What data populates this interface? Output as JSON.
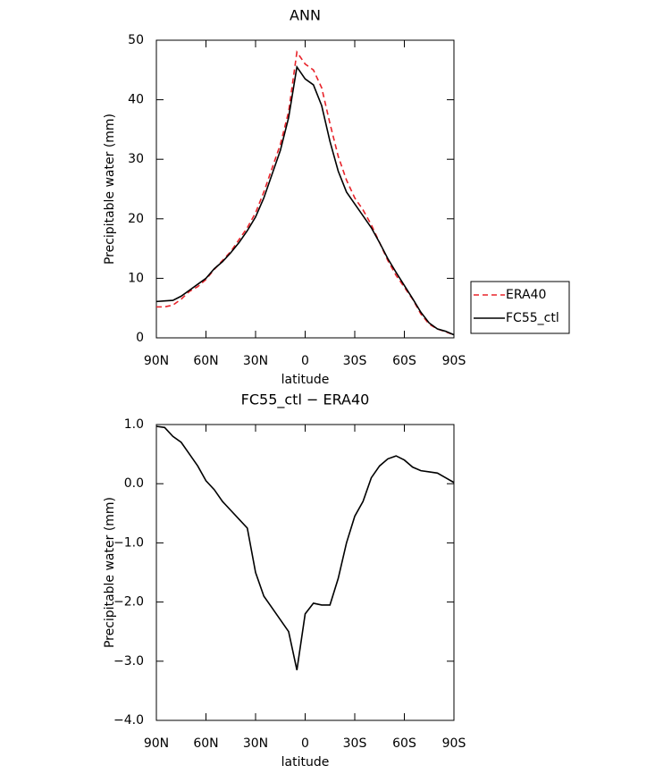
{
  "chart_data": [
    {
      "type": "line",
      "title": "ANN",
      "x_label": "latitude",
      "y_label": "Precipitable water (mm)",
      "x": [
        90,
        85,
        80,
        75,
        70,
        65,
        60,
        55,
        50,
        45,
        40,
        35,
        30,
        25,
        20,
        15,
        10,
        5,
        0,
        -5,
        -10,
        -15,
        -20,
        -25,
        -30,
        -35,
        -40,
        -45,
        -50,
        -55,
        -60,
        -65,
        -70,
        -75,
        -80,
        -85,
        -90
      ],
      "series": [
        {
          "name": "ERA40",
          "color": "#e8232a",
          "dashed": true,
          "values": [
            5.2,
            5.2,
            5.5,
            6.5,
            7.8,
            8.6,
            9.8,
            11.5,
            13.0,
            14.5,
            16.5,
            18.5,
            21.0,
            24.5,
            28.5,
            32.5,
            38.0,
            48.0,
            46.0,
            45.0,
            42.0,
            36.0,
            30.5,
            26.5,
            23.5,
            21.5,
            19.0,
            16.0,
            13.0,
            10.5,
            8.5,
            6.5,
            4.0,
            2.3,
            1.5,
            1.0,
            0.5
          ]
        },
        {
          "name": "FC55_ctl",
          "color": "#000000",
          "dashed": false,
          "values": [
            6.1,
            6.2,
            6.3,
            7.0,
            8.0,
            9.0,
            10.0,
            11.6,
            12.8,
            14.3,
            16.0,
            18.0,
            20.3,
            23.5,
            27.5,
            31.5,
            37.0,
            45.5,
            43.5,
            42.5,
            39.0,
            33.0,
            28.0,
            24.5,
            22.5,
            20.5,
            18.5,
            16.0,
            13.3,
            11.0,
            8.8,
            6.6,
            4.3,
            2.5,
            1.5,
            1.1,
            0.5
          ]
        }
      ],
      "xlim": [
        90,
        -90
      ],
      "xticks": [
        {
          "value": 90,
          "label": "90N"
        },
        {
          "value": 60,
          "label": "60N"
        },
        {
          "value": 30,
          "label": "30N"
        },
        0,
        {
          "value": -30,
          "label": "30S"
        },
        {
          "value": -60,
          "label": "60S"
        },
        {
          "value": -90,
          "label": "90S"
        }
      ],
      "ylim": [
        0,
        50
      ],
      "yticks": [
        0,
        10,
        20,
        30,
        40,
        50
      ],
      "legend": "right"
    },
    {
      "type": "line",
      "title": "FC55_ctl − ERA40",
      "x_label": "latitude",
      "y_label": "Precipitable water (mm)",
      "x": [
        90,
        85,
        80,
        75,
        70,
        65,
        60,
        55,
        50,
        45,
        40,
        35,
        30,
        25,
        20,
        15,
        10,
        5,
        0,
        -5,
        -10,
        -15,
        -20,
        -25,
        -30,
        -35,
        -40,
        -45,
        -50,
        -55,
        -60,
        -65,
        -70,
        -75,
        -80,
        -85,
        -90
      ],
      "series": [
        {
          "color": "#000000",
          "values": [
            0.97,
            0.95,
            0.8,
            0.7,
            0.5,
            0.3,
            0.05,
            -0.1,
            -0.3,
            -0.45,
            -0.6,
            -0.75,
            -1.5,
            -1.9,
            -2.1,
            -2.3,
            -2.5,
            -3.15,
            -2.2,
            -2.02,
            -2.05,
            -2.05,
            -1.6,
            -1.0,
            -0.55,
            -0.3,
            0.1,
            0.3,
            0.42,
            0.47,
            0.4,
            0.28,
            0.22,
            0.2,
            0.18,
            0.1,
            0.02
          ]
        }
      ],
      "xlim": [
        90,
        -90
      ],
      "xticks": [
        {
          "value": 90,
          "label": "90N"
        },
        {
          "value": 60,
          "label": "60N"
        },
        {
          "value": 30,
          "label": "30N"
        },
        0,
        {
          "value": -30,
          "label": "30S"
        },
        {
          "value": -60,
          "label": "60S"
        },
        {
          "value": -90,
          "label": "90S"
        }
      ],
      "ylim": [
        -4,
        1
      ],
      "yticks": [
        {
          "value": -4,
          "label": "−4.0"
        },
        {
          "value": -3,
          "label": "−3.0"
        },
        {
          "value": -2,
          "label": "−2.0"
        },
        {
          "value": -1,
          "label": "−1.0"
        },
        {
          "value": 0,
          "label": "0.0"
        },
        {
          "value": 1,
          "label": "1.0"
        }
      ]
    }
  ]
}
